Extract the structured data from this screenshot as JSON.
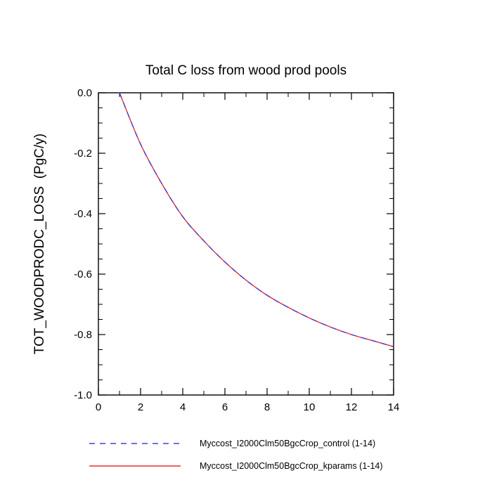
{
  "chart_data": {
    "type": "line",
    "title": "Total C loss from wood prod pools",
    "xlabel": "",
    "ylabel": "TOT_WOODPRODC_LOSS  (PgC/y)",
    "xlim": [
      0,
      14
    ],
    "ylim": [
      -1.0,
      0.0
    ],
    "grid": false,
    "xticks": {
      "values": [
        0,
        2,
        4,
        6,
        8,
        10,
        12,
        14
      ],
      "labels": [
        "0",
        "2",
        "4",
        "6",
        "8",
        "10",
        "12",
        "14"
      ],
      "minor_interval": 1
    },
    "yticks": {
      "values": [
        0.0,
        -0.2,
        -0.4,
        -0.6,
        -0.8,
        -1.0
      ],
      "labels": [
        "0.0",
        "-0.2",
        "-0.4",
        "-0.6",
        "-0.8",
        "-1.0"
      ],
      "minor_interval": 0.05
    },
    "x": [
      1,
      2,
      3,
      4,
      5,
      6,
      7,
      8,
      9,
      10,
      11,
      12,
      13,
      14
    ],
    "series": [
      {
        "name": "Myccost_I2000Clm50BgcCrop_control (1-14)",
        "color": "#4040d9",
        "style": "dashed",
        "values": [
          0.0,
          -0.17,
          -0.3,
          -0.41,
          -0.49,
          -0.56,
          -0.62,
          -0.67,
          -0.71,
          -0.745,
          -0.775,
          -0.8,
          -0.82,
          -0.84
        ]
      },
      {
        "name": "Myccost_I2000Clm50BgcCrop_kparams (1-14)",
        "color": "#ee2c2c",
        "style": "solid",
        "values": [
          0.0,
          -0.17,
          -0.3,
          -0.41,
          -0.49,
          -0.56,
          -0.62,
          -0.67,
          -0.71,
          -0.745,
          -0.775,
          -0.8,
          -0.82,
          -0.84
        ]
      }
    ],
    "legend": {
      "position": "bottom",
      "entries": [
        "Myccost_I2000Clm50BgcCrop_control (1-14)",
        "Myccost_I2000Clm50BgcCrop_kparams (1-14)"
      ]
    }
  }
}
